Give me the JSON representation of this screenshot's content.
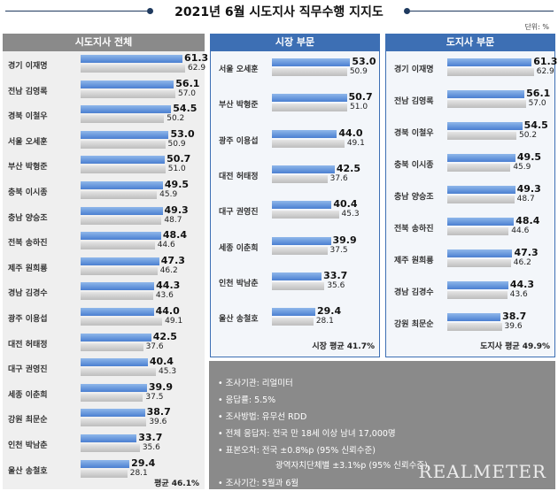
{
  "title": "2021년 6월 시도지사 직무수행 지지도",
  "unit": "단위: %",
  "chart_data": [
    {
      "type": "bar",
      "title": "시도지사 전체",
      "categories": [
        "경기 이재명",
        "전남 김영록",
        "경북 이철우",
        "서울 오세훈",
        "부산 박형준",
        "충북 이시종",
        "충남 양승조",
        "전북 송하진",
        "제주 원희룡",
        "경남 김경수",
        "광주 이용섭",
        "대전 허태정",
        "대구 권영진",
        "세종 이춘희",
        "강원 최문순",
        "인천 박남춘",
        "울산 송철호"
      ],
      "series": [
        {
          "values": [
            61.3,
            56.1,
            54.5,
            53.0,
            50.7,
            49.5,
            49.3,
            48.4,
            47.3,
            44.3,
            44.0,
            42.5,
            40.4,
            39.9,
            38.7,
            33.7,
            29.4
          ]
        },
        {
          "values": [
            62.9,
            57.0,
            50.2,
            50.9,
            51.0,
            45.9,
            48.7,
            44.6,
            46.2,
            43.6,
            49.1,
            37.6,
            45.3,
            37.5,
            39.6,
            35.6,
            28.1
          ]
        }
      ],
      "june_labels": [
        "61.3",
        "56.1",
        "54.5",
        "53.0",
        "50.7",
        "49.5",
        "49.3",
        "48.4",
        "47.3",
        "44.3",
        "44.0",
        "42.5",
        "40.4",
        "39.9",
        "38.7",
        "33.7",
        "29.4"
      ],
      "may_labels": [
        "62.9",
        "57.0",
        "50.2",
        "50.9",
        "51.0",
        "45.9",
        "48.7",
        "44.6",
        "46.2",
        "43.6",
        "49.1",
        "37.6",
        "45.3",
        "37.5",
        "39.6",
        "35.6",
        "28.1"
      ],
      "average": "평균 46.1%"
    },
    {
      "type": "bar",
      "title": "시장 부문",
      "categories": [
        "서울 오세훈",
        "부산 박형준",
        "광주 이용섭",
        "대전 허태정",
        "대구 권영진",
        "세종 이춘희",
        "인천 박남춘",
        "울산 송철호"
      ],
      "series": [
        {
          "values": [
            53.0,
            50.7,
            44.0,
            42.5,
            40.4,
            39.9,
            33.7,
            29.4
          ]
        },
        {
          "values": [
            50.9,
            51.0,
            49.1,
            37.6,
            45.3,
            37.5,
            35.6,
            28.1
          ]
        }
      ],
      "june_labels": [
        "53.0",
        "50.7",
        "44.0",
        "42.5",
        "40.4",
        "39.9",
        "33.7",
        "29.4"
      ],
      "may_labels": [
        "50.9",
        "51.0",
        "49.1",
        "37.6",
        "45.3",
        "37.5",
        "35.6",
        "28.1"
      ],
      "average": "시장 평균 41.7%"
    },
    {
      "type": "bar",
      "title": "도지사 부문",
      "categories": [
        "경기 이재명",
        "전남 김영록",
        "경북 이철우",
        "충북 이시종",
        "충남 양승조",
        "전북 송하진",
        "제주 원희룡",
        "경남 김경수",
        "강원 최문순"
      ],
      "series": [
        {
          "values": [
            61.3,
            56.1,
            54.5,
            49.5,
            49.3,
            48.4,
            47.3,
            44.3,
            38.7
          ]
        },
        {
          "values": [
            62.9,
            57.0,
            50.2,
            45.9,
            48.7,
            44.6,
            46.2,
            43.6,
            39.6
          ]
        }
      ],
      "june_labels": [
        "61.3",
        "56.1",
        "54.5",
        "49.5",
        "49.3",
        "48.4",
        "47.3",
        "44.3",
        "38.7"
      ],
      "may_labels": [
        "62.9",
        "57.0",
        "50.2",
        "45.9",
        "48.7",
        "44.6",
        "46.2",
        "43.6",
        "39.6"
      ],
      "average": "도지사 평균 49.9%"
    }
  ],
  "info": {
    "lines": [
      "• 조사기관: 리얼미터",
      "• 응답률: 5.5%",
      "• 조사방법: 유무선 RDD",
      "• 전체 응답자: 전국 만 18세 이상 남녀 17,000명",
      "• 표본오차: 전국 ±0.8%p (95% 신뢰수준)",
      "광역자치단체별 ±3.1%p (95% 신뢰수준)",
      "• 조사기간: 5월과 6월"
    ],
    "brand": "REALMETER"
  },
  "colors": {
    "header_dark": "#8a8a8a",
    "header_blue": "#3d6fb4",
    "panel_bg_gray": "#efefef",
    "panel_bg_blue": "#f3f6fa",
    "border_blue": "#3d6fb4"
  }
}
